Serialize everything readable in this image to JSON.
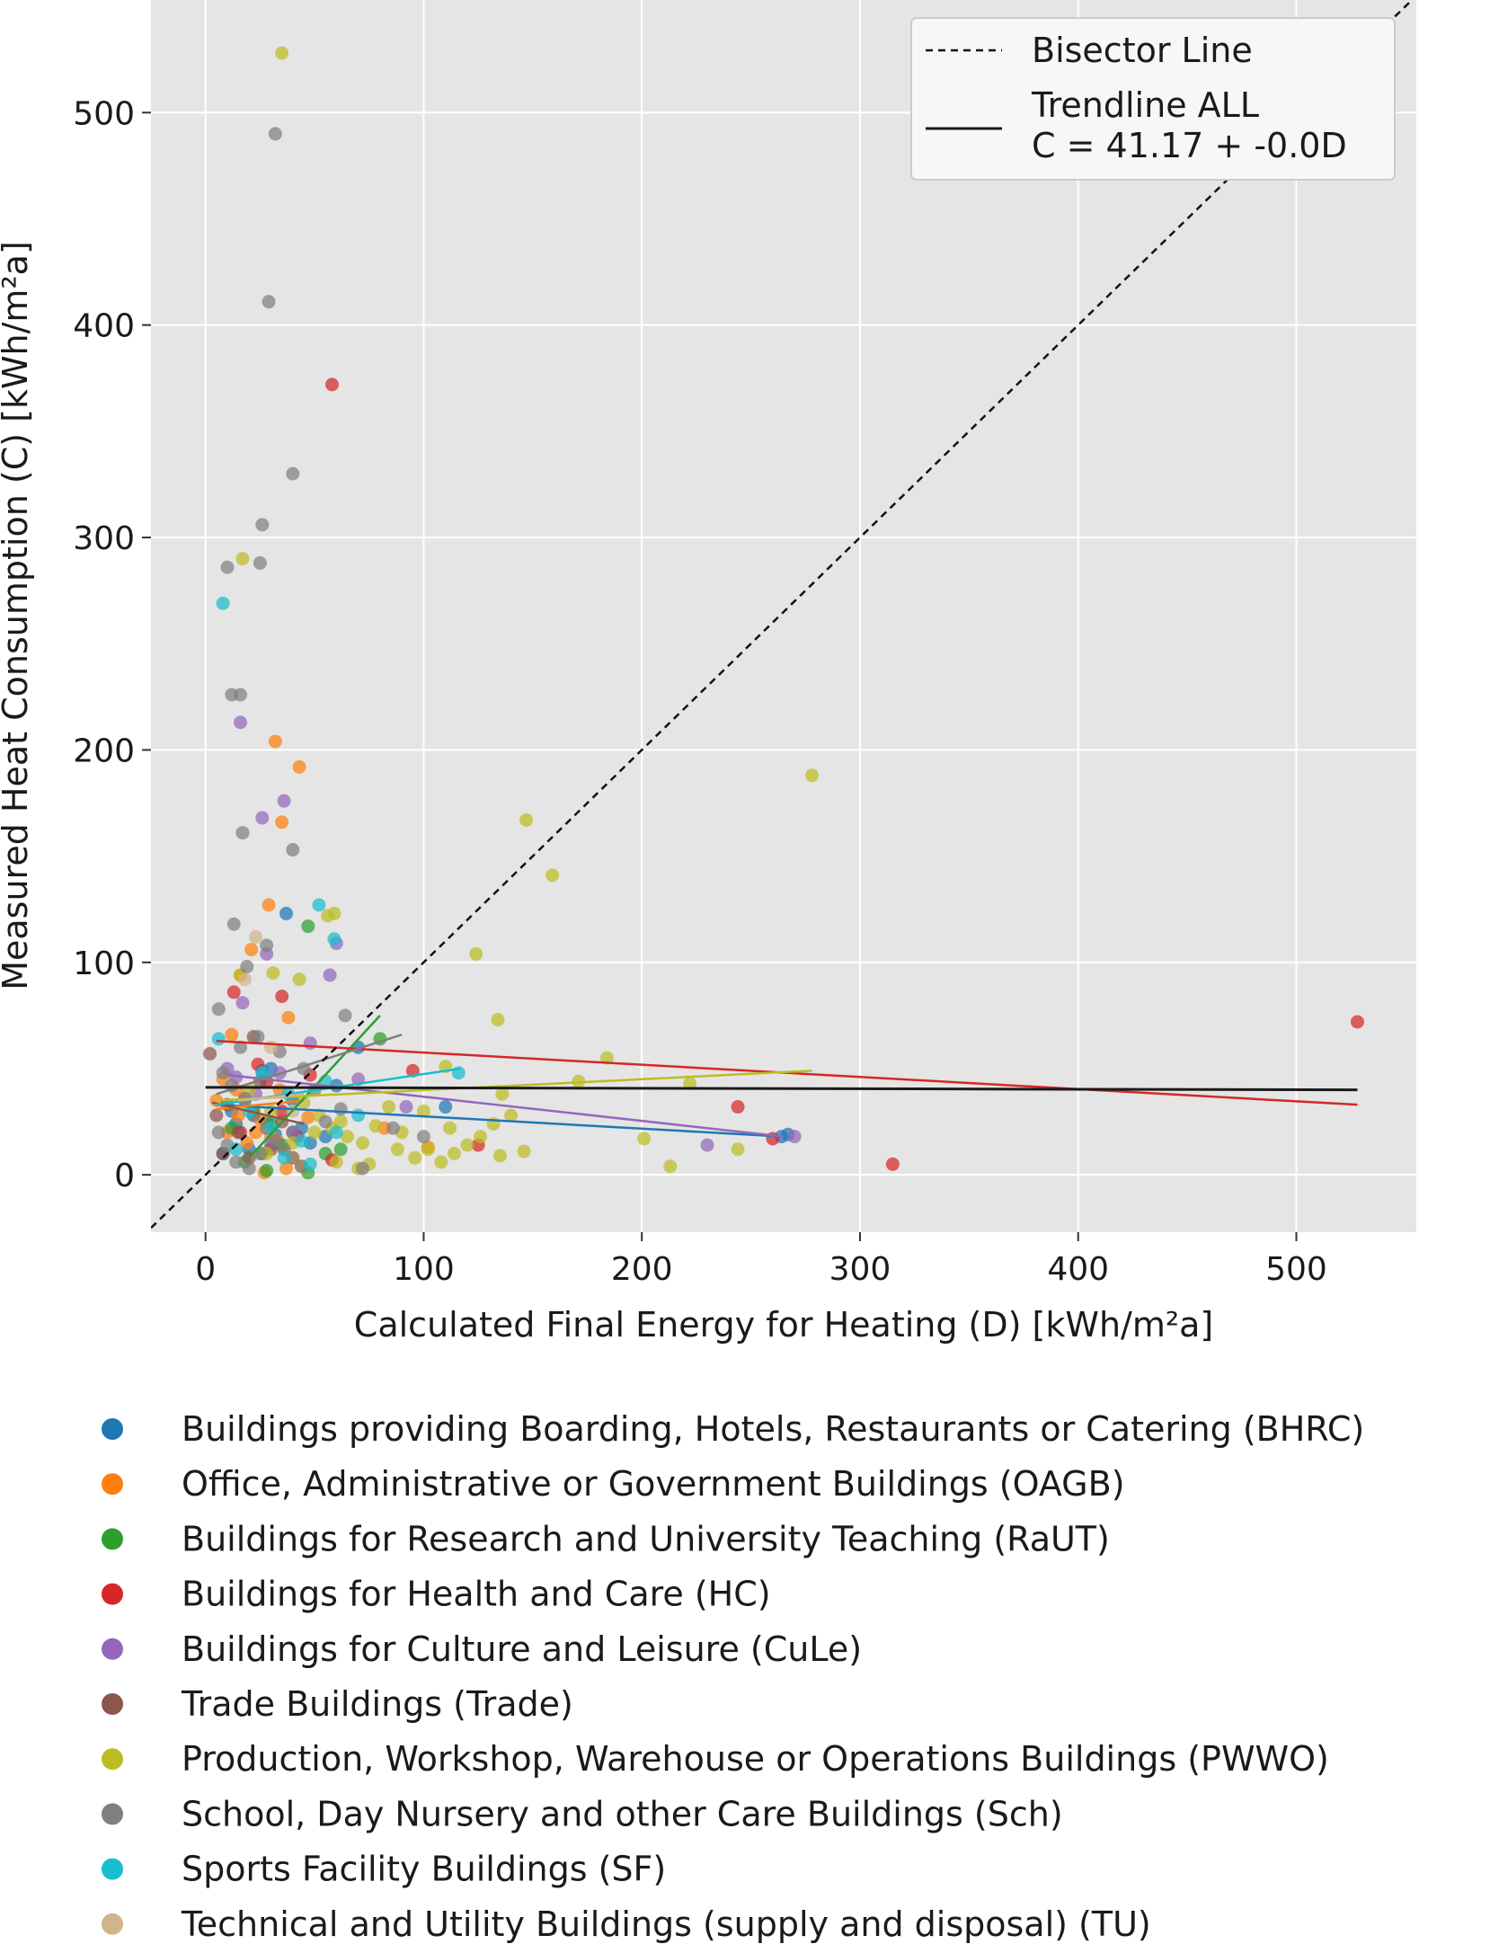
{
  "chart_data": {
    "type": "scatter",
    "xlabel": "Calculated Final Energy for Heating (D) [kWh/m²a]",
    "ylabel": "Measured Heat Consumption (C) [kWh/m²a]",
    "xlim": [
      -25,
      555
    ],
    "ylim": [
      -27,
      553
    ],
    "xticks": [
      0,
      100,
      200,
      300,
      400,
      500
    ],
    "yticks": [
      0,
      100,
      200,
      300,
      400,
      500
    ],
    "grid": true,
    "legend_inner": {
      "position": "top-right",
      "entries": [
        {
          "label": "Bisector Line",
          "style": "dashed"
        },
        {
          "label": "Trendline ALL",
          "label2": "C = 41.17 + -0.0D",
          "style": "solid"
        }
      ]
    },
    "bisector": {
      "x": [
        -25,
        555
      ],
      "y": [
        -25,
        555
      ]
    },
    "trend_all": {
      "x": [
        0,
        528
      ],
      "y": [
        41.17,
        40.0
      ],
      "color": "#1a1a1a"
    },
    "series": [
      {
        "name": "Buildings providing Boarding, Hotels, Restaurants or Catering (BHRC)",
        "color": "#1f77b4",
        "points": [
          [
            37,
            123
          ],
          [
            26,
            49
          ],
          [
            30,
            50
          ],
          [
            14,
            24
          ],
          [
            18,
            35
          ],
          [
            22,
            28
          ],
          [
            28,
            25
          ],
          [
            32,
            19
          ],
          [
            55,
            18
          ],
          [
            60,
            42
          ],
          [
            110,
            32
          ],
          [
            264,
            18
          ],
          [
            267,
            19
          ],
          [
            8,
            10
          ],
          [
            44,
            22
          ],
          [
            20,
            12
          ],
          [
            40,
            35
          ],
          [
            70,
            60
          ],
          [
            12,
            30
          ],
          [
            48,
            15
          ]
        ],
        "trend": {
          "x": [
            5,
            265
          ],
          "y": [
            33,
            18
          ]
        }
      },
      {
        "name": "Office, Administrative or Government Buildings (OAGB)",
        "color": "#ff7f0e",
        "points": [
          [
            32,
            204
          ],
          [
            43,
            192
          ],
          [
            35,
            166
          ],
          [
            29,
            127
          ],
          [
            21,
            106
          ],
          [
            16,
            94
          ],
          [
            38,
            74
          ],
          [
            12,
            66
          ],
          [
            8,
            45
          ],
          [
            14,
            40
          ],
          [
            18,
            36
          ],
          [
            22,
            30
          ],
          [
            25,
            26
          ],
          [
            28,
            22
          ],
          [
            30,
            18
          ],
          [
            33,
            16
          ],
          [
            36,
            12
          ],
          [
            40,
            8
          ],
          [
            44,
            4
          ],
          [
            27,
            1
          ],
          [
            10,
            20
          ],
          [
            15,
            28
          ],
          [
            23,
            20
          ],
          [
            34,
            40
          ],
          [
            47,
            27
          ],
          [
            82,
            22
          ],
          [
            102,
            13
          ],
          [
            5,
            35
          ],
          [
            19,
            15
          ],
          [
            37,
            3
          ]
        ],
        "trend": {
          "x": [
            5,
            45
          ],
          "y": [
            31,
            35
          ]
        }
      },
      {
        "name": "Buildings for Research and University Teaching (RaUT)",
        "color": "#2ca02c",
        "points": [
          [
            47,
            117
          ],
          [
            80,
            64
          ],
          [
            26,
            10
          ],
          [
            35,
            14
          ],
          [
            12,
            22
          ],
          [
            18,
            6
          ],
          [
            28,
            2
          ],
          [
            47,
            1
          ],
          [
            55,
            10
          ],
          [
            40,
            20
          ],
          [
            62,
            12
          ],
          [
            22,
            30
          ],
          [
            30,
            24
          ]
        ],
        "trend": {
          "x": [
            20,
            80
          ],
          "y": [
            8,
            75
          ]
        }
      },
      {
        "name": "Buildings for Health and Care (HC)",
        "color": "#d62728",
        "points": [
          [
            58,
            372
          ],
          [
            35,
            84
          ],
          [
            13,
            86
          ],
          [
            28,
            44
          ],
          [
            48,
            47
          ],
          [
            95,
            49
          ],
          [
            125,
            14
          ],
          [
            244,
            32
          ],
          [
            260,
            17
          ],
          [
            315,
            5
          ],
          [
            528,
            72
          ],
          [
            58,
            7
          ],
          [
            24,
            52
          ],
          [
            16,
            20
          ],
          [
            35,
            30
          ],
          [
            42,
            18
          ]
        ],
        "trend": {
          "x": [
            5,
            528
          ],
          "y": [
            63,
            33
          ]
        }
      },
      {
        "name": "Buildings for Culture and Leisure (CuLe)",
        "color": "#9467bd",
        "points": [
          [
            16,
            213
          ],
          [
            36,
            176
          ],
          [
            26,
            168
          ],
          [
            60,
            109
          ],
          [
            28,
            104
          ],
          [
            57,
            94
          ],
          [
            17,
            81
          ],
          [
            14,
            46
          ],
          [
            23,
            38
          ],
          [
            34,
            48
          ],
          [
            48,
            62
          ],
          [
            70,
            45
          ],
          [
            92,
            32
          ],
          [
            230,
            14
          ],
          [
            270,
            18
          ],
          [
            10,
            50
          ],
          [
            40,
            20
          ],
          [
            30,
            14
          ]
        ],
        "trend": {
          "x": [
            10,
            265
          ],
          "y": [
            47,
            18
          ]
        }
      },
      {
        "name": "Trade Buildings (Trade)",
        "color": "#8c564b",
        "points": [
          [
            2,
            57
          ],
          [
            10,
            33
          ],
          [
            15,
            20
          ],
          [
            8,
            10
          ],
          [
            20,
            8
          ],
          [
            25,
            44
          ],
          [
            30,
            12
          ],
          [
            35,
            25
          ],
          [
            5,
            28
          ],
          [
            22,
            65
          ]
        ],
        "trend": {
          "x": [
            3,
            45
          ],
          "y": [
            34,
            24
          ]
        }
      },
      {
        "name": "Production, Workshop, Warehouse or Operations Buildings (PWWO)",
        "color": "#bcbd22",
        "points": [
          [
            35,
            528
          ],
          [
            17,
            290
          ],
          [
            59,
            123
          ],
          [
            56,
            122
          ],
          [
            147,
            167
          ],
          [
            159,
            141
          ],
          [
            124,
            104
          ],
          [
            278,
            188
          ],
          [
            43,
            92
          ],
          [
            16,
            94
          ],
          [
            31,
            95
          ],
          [
            134,
            73
          ],
          [
            184,
            55
          ],
          [
            171,
            44
          ],
          [
            222,
            43
          ],
          [
            110,
            51
          ],
          [
            136,
            38
          ],
          [
            140,
            28
          ],
          [
            45,
            34
          ],
          [
            52,
            28
          ],
          [
            58,
            22
          ],
          [
            65,
            18
          ],
          [
            72,
            15
          ],
          [
            78,
            23
          ],
          [
            84,
            32
          ],
          [
            90,
            20
          ],
          [
            96,
            8
          ],
          [
            102,
            12
          ],
          [
            108,
            6
          ],
          [
            114,
            10
          ],
          [
            120,
            14
          ],
          [
            126,
            18
          ],
          [
            132,
            24
          ],
          [
            146,
            11
          ],
          [
            135,
            9
          ],
          [
            201,
            17
          ],
          [
            213,
            4
          ],
          [
            244,
            12
          ],
          [
            20,
            40
          ],
          [
            30,
            30
          ],
          [
            40,
            15
          ],
          [
            60,
            6
          ],
          [
            70,
            3
          ],
          [
            75,
            5
          ],
          [
            88,
            12
          ],
          [
            100,
            30
          ],
          [
            112,
            22
          ],
          [
            28,
            10
          ],
          [
            50,
            20
          ],
          [
            62,
            25
          ]
        ],
        "trend": {
          "x": [
            5,
            278
          ],
          "y": [
            35,
            49
          ]
        }
      },
      {
        "name": "School, Day Nursery and other Care Buildings (Sch)",
        "color": "#7f7f7f",
        "points": [
          [
            32,
            490
          ],
          [
            29,
            411
          ],
          [
            40,
            330
          ],
          [
            26,
            306
          ],
          [
            10,
            286
          ],
          [
            25,
            288
          ],
          [
            12,
            226
          ],
          [
            16,
            226
          ],
          [
            17,
            161
          ],
          [
            40,
            153
          ],
          [
            13,
            118
          ],
          [
            28,
            108
          ],
          [
            19,
            98
          ],
          [
            6,
            78
          ],
          [
            64,
            75
          ],
          [
            16,
            60
          ],
          [
            24,
            65
          ],
          [
            8,
            48
          ],
          [
            12,
            42
          ],
          [
            18,
            36
          ],
          [
            22,
            28
          ],
          [
            28,
            22
          ],
          [
            32,
            16
          ],
          [
            36,
            12
          ],
          [
            40,
            8
          ],
          [
            44,
            4
          ],
          [
            14,
            6
          ],
          [
            20,
            3
          ],
          [
            25,
            10
          ],
          [
            10,
            14
          ],
          [
            6,
            20
          ],
          [
            62,
            31
          ],
          [
            72,
            3
          ],
          [
            86,
            22
          ],
          [
            100,
            18
          ],
          [
            50,
            40
          ],
          [
            55,
            25
          ],
          [
            34,
            58
          ],
          [
            45,
            50
          ]
        ],
        "trend": {
          "x": [
            5,
            90
          ],
          "y": [
            38,
            66
          ]
        }
      },
      {
        "name": "Sports Facility Buildings (SF)",
        "color": "#17becf",
        "points": [
          [
            8,
            269
          ],
          [
            52,
            127
          ],
          [
            59,
            111
          ],
          [
            6,
            64
          ],
          [
            26,
            48
          ],
          [
            116,
            48
          ],
          [
            55,
            44
          ],
          [
            38,
            38
          ],
          [
            20,
            30
          ],
          [
            30,
            22
          ],
          [
            44,
            16
          ],
          [
            14,
            12
          ],
          [
            36,
            8
          ],
          [
            48,
            5
          ],
          [
            60,
            20
          ],
          [
            70,
            28
          ]
        ],
        "trend": {
          "x": [
            5,
            117
          ],
          "y": [
            33,
            50
          ]
        }
      },
      {
        "name": "Technical and Utility Buildings (supply and disposal) (TU)",
        "color": "#d2b48c",
        "points": [
          [
            23,
            112
          ],
          [
            18,
            92
          ],
          [
            30,
            60
          ],
          [
            40,
            30
          ]
        ],
        "trend": {
          "x": [
            15,
            45
          ],
          "y": [
            35,
            38
          ]
        }
      }
    ]
  }
}
